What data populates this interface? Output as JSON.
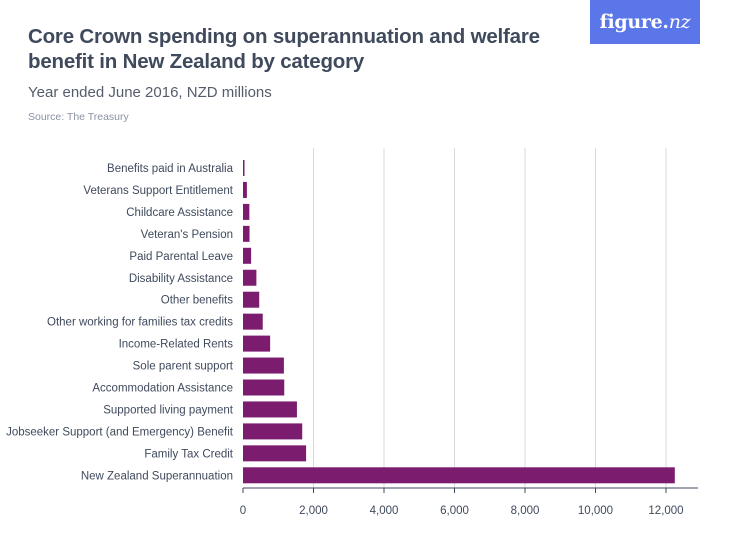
{
  "brand": {
    "logo_main": "figure.",
    "logo_suffix": "nz"
  },
  "header": {
    "title": "Core Crown spending on superannuation and welfare benefit in New Zealand by category",
    "subtitle": "Year ended June 2016, NZD millions",
    "source": "Source: The Treasury"
  },
  "colors": {
    "bar": "#7b1c6e",
    "grid": "#d5d8de",
    "axis": "#3f4a5c",
    "logo_bg": "#5b76e8"
  },
  "chart_data": {
    "type": "bar",
    "orientation": "horizontal",
    "categories": [
      "Benefits paid in Australia",
      "Veterans Support Entitlement",
      "Childcare Assistance",
      "Veteran's Pension",
      "Paid Parental Leave",
      "Disability Assistance",
      "Other benefits",
      "Other working for families tax credits",
      "Income-Related Rents",
      "Sole parent support",
      "Accommodation Assistance",
      "Supported living payment",
      "Jobseeker Support (and Emergency) Benefit",
      "Family Tax Credit",
      "New Zealand Superannuation"
    ],
    "values": [
      40,
      110,
      180,
      185,
      230,
      380,
      460,
      560,
      770,
      1160,
      1170,
      1530,
      1680,
      1790,
      12250
    ],
    "xlim": [
      0,
      13000
    ],
    "xticks": [
      0,
      2000,
      4000,
      6000,
      8000,
      10000,
      12000
    ],
    "xtick_labels": [
      "0",
      "2,000",
      "4,000",
      "6,000",
      "8,000",
      "10,000",
      "12,000"
    ],
    "grid": "vertical",
    "title": "Core Crown spending on superannuation and welfare benefit in New Zealand by category"
  }
}
